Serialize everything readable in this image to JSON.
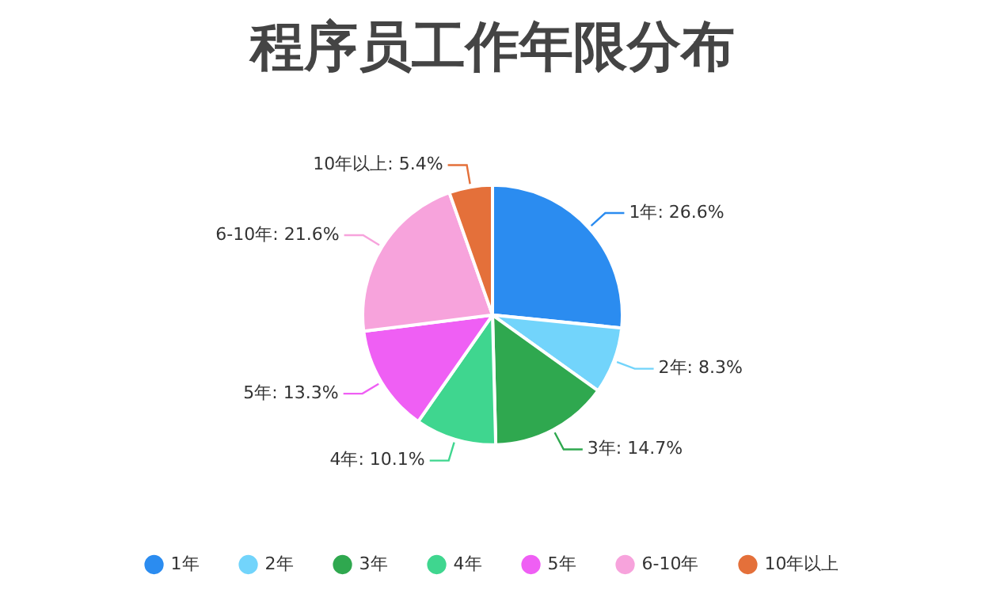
{
  "chart_data": {
    "type": "pie",
    "title": "程序员工作年限分布",
    "categories": [
      "1年",
      "2年",
      "3年",
      "4年",
      "5年",
      "6-10年",
      "10年以上"
    ],
    "values": [
      26.6,
      8.3,
      14.7,
      10.1,
      13.3,
      21.6,
      5.4
    ],
    "value_labels": [
      "1年: 26.6%",
      "2年: 8.3%",
      "3年: 14.7%",
      "4年: 10.1%",
      "5年: 13.3%",
      "6-10年: 21.6%",
      "10年以上: 5.4%"
    ],
    "colors": [
      "#2b8cf0",
      "#72d4fb",
      "#2fa84f",
      "#3fd68f",
      "#ef5ff4",
      "#f7a3dc",
      "#e4703a"
    ],
    "legend": "bottom"
  }
}
